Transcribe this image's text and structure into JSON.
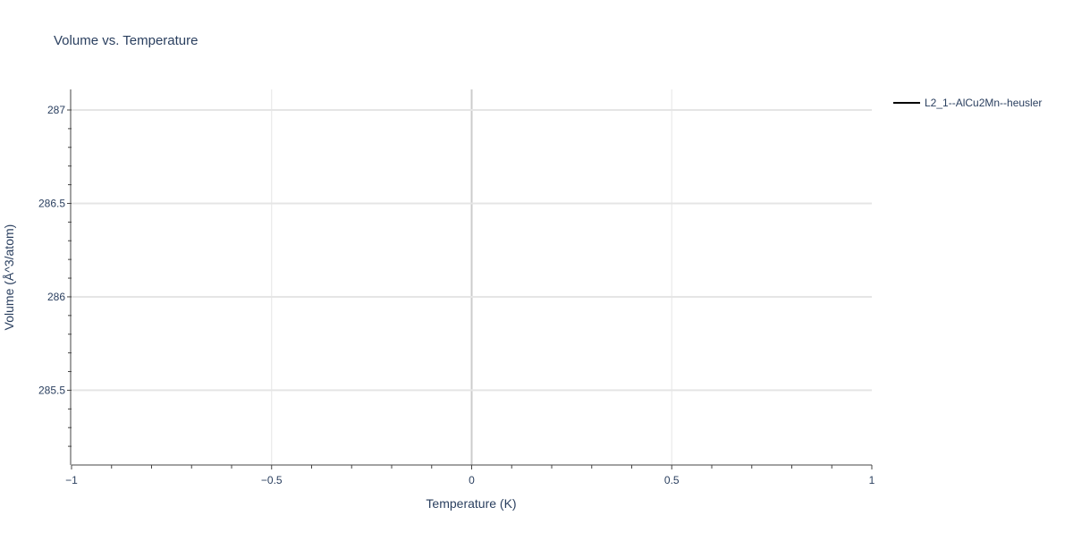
{
  "chart_data": {
    "type": "line",
    "title": "Volume vs. Temperature",
    "xlabel": "Temperature (K)",
    "ylabel": "Volume (Å^3/atom)",
    "xlim": [
      -1,
      1
    ],
    "ylim": [
      285.1,
      287.11
    ],
    "x_ticks": [
      -1,
      -0.5,
      0,
      0.5,
      1
    ],
    "x_tick_labels": [
      "−1",
      "−0.5",
      "0",
      "0.5",
      "1"
    ],
    "y_ticks": [
      285.5,
      286,
      286.5,
      287
    ],
    "y_tick_labels": [
      "285.5",
      "286",
      "286.5",
      "287"
    ],
    "grid": true,
    "legend_position": "top-right",
    "series": [
      {
        "name": "L2_1--AlCu2Mn--heusler",
        "color": "#000000",
        "x": [],
        "y": []
      }
    ]
  }
}
